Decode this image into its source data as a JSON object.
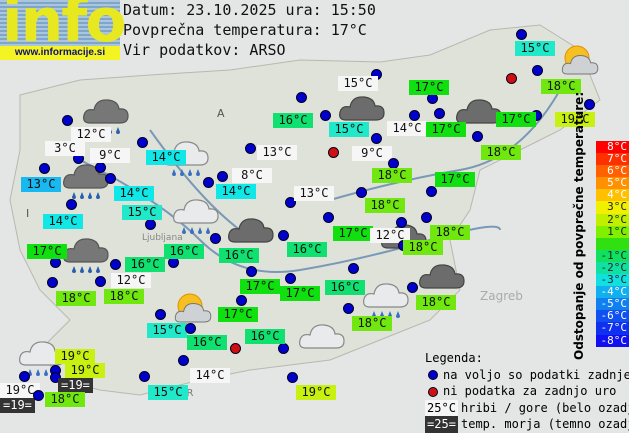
{
  "header": {
    "logo_text": "info",
    "logo_url": "www.informacije.si",
    "date_line": "Datum: 23.10.2025 ura: 15:50",
    "avg_temp_line": "Povprečna temperatura: 17°C",
    "source_line": "Vir podatkov: ARSO"
  },
  "category_colors": {
    "white": "#f6f6f6",
    "t13": "#18b8f0",
    "t14": "#10e8e8",
    "t15": "#20e8c8",
    "t16": "#10e070",
    "t17": "#10e010",
    "t18": "#70e810",
    "t19": "#c8f010",
    "sea": "#333333",
    "dot_blue": "#0000cc",
    "dot_red": "#d01010"
  },
  "stations": [
    {
      "t": "15°C",
      "c": "t15"
    },
    {
      "t": "15°C",
      "c": "white"
    },
    {
      "t": "17°C",
      "c": "t17"
    },
    {
      "t": "18°C",
      "c": "t18"
    },
    {
      "t": "12°C",
      "c": "white"
    },
    {
      "t": "16°C",
      "c": "t16"
    },
    {
      "t": "15°C",
      "c": "t15"
    },
    {
      "t": "14°C",
      "c": "white"
    },
    {
      "t": "17°C",
      "c": "t17"
    },
    {
      "t": "17°C",
      "c": "t17"
    },
    {
      "t": "19°C",
      "c": "t19"
    },
    {
      "t": "3°C",
      "c": "white"
    },
    {
      "t": "9°C",
      "c": "white"
    },
    {
      "t": "14°C",
      "c": "t14"
    },
    {
      "t": "13°C",
      "c": "white"
    },
    {
      "t": "9°C",
      "c": "white"
    },
    {
      "t": "18°C",
      "c": "t18"
    },
    {
      "t": "13°C",
      "c": "t13"
    },
    {
      "t": "8°C",
      "c": "white"
    },
    {
      "t": "18°C",
      "c": "t18"
    },
    {
      "t": "17°C",
      "c": "t17"
    },
    {
      "t": "14°C",
      "c": "t14"
    },
    {
      "t": "14°C",
      "c": "t14"
    },
    {
      "t": "13°C",
      "c": "white"
    },
    {
      "t": "18°C",
      "c": "t18"
    },
    {
      "t": "15°C",
      "c": "t15"
    },
    {
      "t": "14°C",
      "c": "t14"
    },
    {
      "t": "17°C",
      "c": "t17"
    },
    {
      "t": "12°C",
      "c": "white"
    },
    {
      "t": "18°C",
      "c": "t18"
    },
    {
      "t": "18°C",
      "c": "t18"
    },
    {
      "t": "17°C",
      "c": "t17"
    },
    {
      "t": "16°C",
      "c": "t16"
    },
    {
      "t": "16°C",
      "c": "t16"
    },
    {
      "t": "16°C",
      "c": "t16"
    },
    {
      "t": "16°C",
      "c": "t16"
    },
    {
      "t": "12°C",
      "c": "white"
    },
    {
      "t": "18°C",
      "c": "t18"
    },
    {
      "t": "18°C",
      "c": "t18"
    },
    {
      "t": "17°C",
      "c": "t17"
    },
    {
      "t": "17°C",
      "c": "t17"
    },
    {
      "t": "16°C",
      "c": "t16"
    },
    {
      "t": "18°C",
      "c": "t18"
    },
    {
      "t": "17°C",
      "c": "t17"
    },
    {
      "t": "15°C",
      "c": "t15"
    },
    {
      "t": "16°C",
      "c": "t16"
    },
    {
      "t": "16°C",
      "c": "t16"
    },
    {
      "t": "18°C",
      "c": "t18"
    },
    {
      "t": "19°C",
      "c": "t19"
    },
    {
      "t": "19°C",
      "c": "t19"
    },
    {
      "t": "=19=",
      "c": "sea"
    },
    {
      "t": "19°C",
      "c": "white"
    },
    {
      "t": "=19=",
      "c": "sea"
    },
    {
      "t": "18°C",
      "c": "t18"
    },
    {
      "t": "15°C",
      "c": "t15"
    },
    {
      "t": "14°C",
      "c": "white"
    },
    {
      "t": "19°C",
      "c": "t19"
    }
  ],
  "weather_icons": [
    "rain",
    "rain-light",
    "rain",
    "rain-light",
    "partly-sunny",
    "overcast",
    "overcast",
    "overcast",
    "overcast",
    "rain",
    "overcast",
    "partly-sunny",
    "rain-light",
    "cloudy",
    "rain-light"
  ],
  "scale": {
    "title": "Odstopanje od povprečne temperature:",
    "steps": [
      {
        "label": "8°C",
        "color": "#ff0000"
      },
      {
        "label": "7°C",
        "color": "#ff3000"
      },
      {
        "label": "6°C",
        "color": "#ff6000"
      },
      {
        "label": "5°C",
        "color": "#ff9000"
      },
      {
        "label": "4°C",
        "color": "#ffc000"
      },
      {
        "label": "3°C",
        "color": "#f0f000"
      },
      {
        "label": "2°C",
        "color": "#c0f000"
      },
      {
        "label": "1°C",
        "color": "#80f000"
      },
      {
        "label": "",
        "color": "#30e010"
      },
      {
        "label": "-1°C",
        "color": "#10e060"
      },
      {
        "label": "-2°C",
        "color": "#10e0a0"
      },
      {
        "label": "-3°C",
        "color": "#10e0e0"
      },
      {
        "label": "-4°C",
        "color": "#10b0f0"
      },
      {
        "label": "-5°C",
        "color": "#1080f0"
      },
      {
        "label": "-6°C",
        "color": "#1050f0"
      },
      {
        "label": "-7°C",
        "color": "#1030f0"
      },
      {
        "label": "-8°C",
        "color": "#1010f0"
      }
    ]
  },
  "legend": {
    "title": "Legenda:",
    "blue_dot": "na voljo so podatki zadnje ure",
    "red_dot": "ni podatka za zadnjo uro",
    "white_sample": "25°C",
    "white_text": "hribi / gore (belo ozadje)",
    "sea_sample": "=25=",
    "sea_text": "temp. morja (temno ozadje)"
  },
  "map_labels": {
    "austria": "A",
    "italy": "I",
    "croatia": "HR",
    "zagreb": "Zagreb",
    "ljubljana": "Ljubljana"
  }
}
